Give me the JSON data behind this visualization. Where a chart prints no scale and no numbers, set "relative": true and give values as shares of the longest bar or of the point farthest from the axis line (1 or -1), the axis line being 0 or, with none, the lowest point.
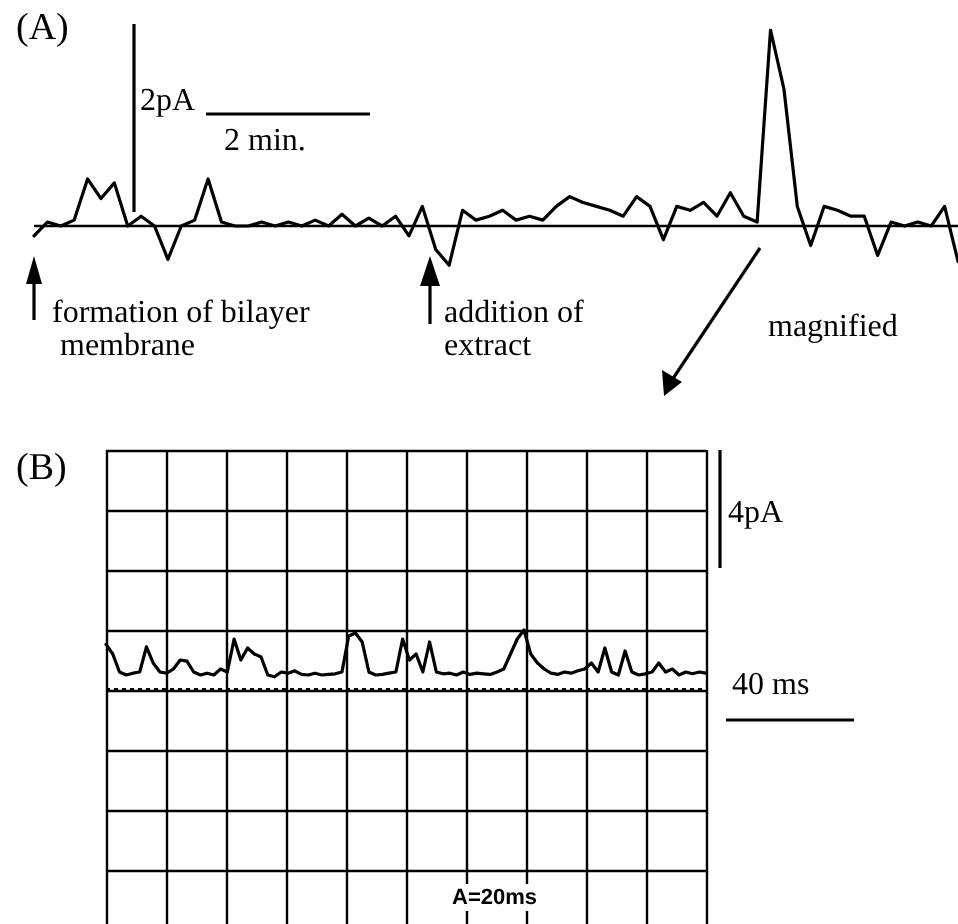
{
  "chart_data": [
    {
      "type": "line",
      "relative": true,
      "tick_labels": false,
      "grid": false,
      "marker": "none",
      "line_style": "solid",
      "color": "#000000",
      "categories": [
        null,
        null,
        null,
        null,
        null,
        null,
        null,
        null,
        null,
        null,
        null,
        null,
        null,
        null,
        null,
        null,
        null,
        null,
        null,
        null,
        null,
        null,
        null,
        null,
        null,
        null,
        null,
        null,
        null,
        null,
        null,
        null,
        null,
        null,
        null,
        null,
        null,
        null,
        null,
        null,
        null,
        null,
        null,
        null,
        null,
        null,
        null,
        null,
        null,
        null,
        null,
        null,
        null,
        null,
        null,
        null,
        null,
        null,
        null,
        null,
        null,
        null,
        null,
        null,
        null,
        null,
        null,
        null,
        null,
        null
      ],
      "values": [
        -0.05,
        0.02,
        0,
        0.03,
        0.24,
        0.14,
        0.22,
        0,
        0.05,
        0,
        -0.17,
        0,
        0.03,
        0.24,
        0.02,
        0,
        0,
        0.02,
        0,
        0.02,
        0,
        0.03,
        0,
        0.06,
        0,
        0.04,
        0,
        0.05,
        -0.05,
        0.1,
        -0.12,
        -0.2,
        0.08,
        0.03,
        0.05,
        0.08,
        0.03,
        0.05,
        0.03,
        0.1,
        0.15,
        0.12,
        0.1,
        0.08,
        0.05,
        0.15,
        0.1,
        -0.07,
        0.1,
        0.08,
        0.12,
        0.05,
        0.17,
        0.05,
        0.02,
        1,
        0.7,
        0.1,
        -0.1,
        0.1,
        0.08,
        0.05,
        0.05,
        -0.15,
        0.02,
        0,
        0.02,
        0,
        0.1,
        -0.18
      ],
      "annotations": [
        "(A)",
        "2pA",
        "2 min.",
        "formation of bilayer membrane",
        "addition of extract",
        "magnified"
      ]
    },
    {
      "type": "line",
      "relative": true,
      "tick_labels": false,
      "grid": true,
      "marker": "none",
      "line_style": "solid",
      "color": "#000000",
      "categories": [
        null,
        null,
        null,
        null,
        null,
        null,
        null,
        null,
        null,
        null,
        null,
        null,
        null,
        null,
        null,
        null,
        null,
        null,
        null,
        null,
        null,
        null,
        null,
        null,
        null,
        null,
        null,
        null,
        null,
        null,
        null,
        null,
        null,
        null,
        null,
        null,
        null,
        null,
        null,
        null,
        null,
        null,
        null,
        null,
        null,
        null,
        null,
        null,
        null,
        null,
        null,
        null,
        null,
        null,
        null,
        null,
        null,
        null,
        null,
        null,
        null,
        null,
        null,
        null,
        null,
        null,
        null,
        null,
        null,
        null,
        null,
        null,
        null,
        null,
        null,
        null,
        null,
        null,
        null,
        null,
        null,
        null,
        null,
        null,
        null,
        null,
        null,
        null,
        null,
        null
      ],
      "values": [
        0.76,
        0.6,
        0.3,
        0.25,
        0.28,
        0.3,
        0.72,
        0.45,
        0.3,
        0.28,
        0.35,
        0.5,
        0.48,
        0.3,
        0.25,
        0.28,
        0.25,
        0.35,
        0.3,
        0.85,
        0.5,
        0.7,
        0.6,
        0.55,
        0.25,
        0.22,
        0.3,
        0.28,
        0.32,
        0.26,
        0.25,
        0.28,
        0.25,
        0.26,
        0.27,
        0.3,
        0.9,
        0.95,
        0.8,
        0.3,
        0.25,
        0.26,
        0.28,
        0.3,
        0.85,
        0.5,
        0.6,
        0.3,
        0.8,
        0.3,
        0.27,
        0.28,
        0.25,
        0.3,
        0.26,
        0.28,
        0.27,
        0.26,
        0.3,
        0.35,
        0.6,
        0.85,
        1,
        0.6,
        0.45,
        0.35,
        0.28,
        0.26,
        0.3,
        0.28,
        0.32,
        0.35,
        0.45,
        0.3,
        0.7,
        0.3,
        0.25,
        0.65,
        0.3,
        0.25,
        0.27,
        0.3,
        0.45,
        0.3,
        0.35,
        0.25,
        0.3,
        0.27,
        0.3,
        0.28
      ],
      "annotations": [
        "(B)",
        "4pA",
        "40 ms",
        "A=20ms"
      ]
    }
  ]
}
